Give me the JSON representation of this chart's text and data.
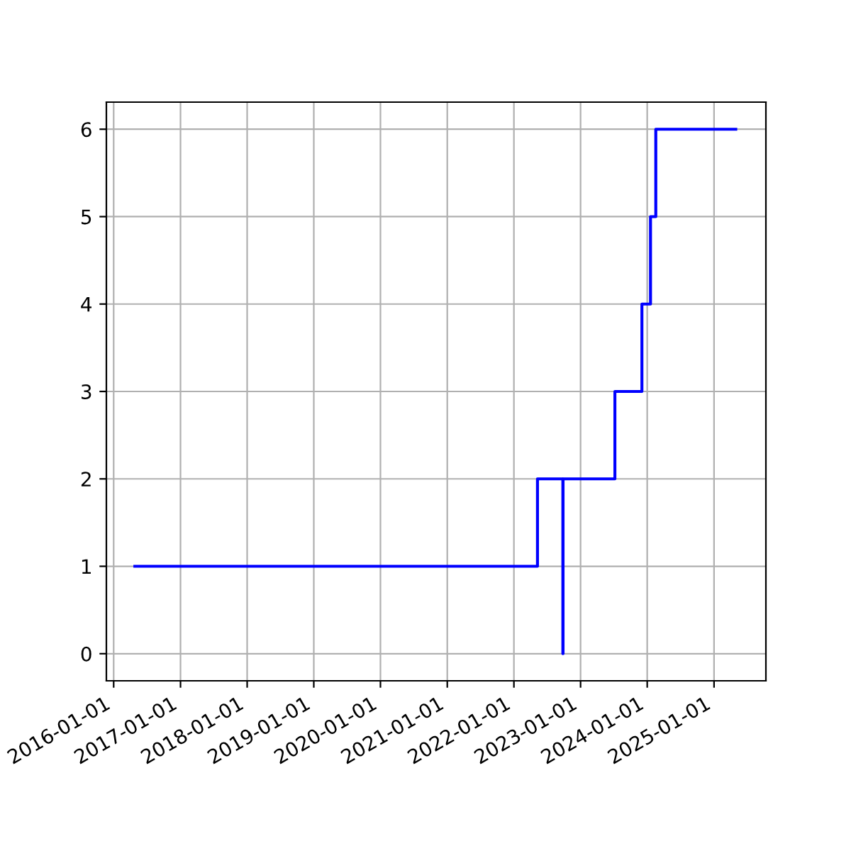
{
  "chart_data": {
    "type": "step",
    "x": [
      "2016-04-26",
      "2022-05-10",
      "2022-09-26",
      "2022-09-27",
      "2023-07-08",
      "2023-12-03",
      "2024-01-19",
      "2024-02-17",
      "2025-04-30"
    ],
    "series": [
      {
        "color": "#0000ff",
        "values": [
          1,
          2,
          0,
          2,
          3,
          4,
          5,
          6,
          6
        ]
      }
    ],
    "xlim": [
      "2015-11-22",
      "2025-10-12"
    ],
    "xticks": [
      {
        "value": "2016-01-01",
        "label": "2016-01-01"
      },
      {
        "value": "2017-01-01",
        "label": "2017-01-01"
      },
      {
        "value": "2018-01-01",
        "label": "2018-01-01"
      },
      {
        "value": "2019-01-01",
        "label": "2019-01-01"
      },
      {
        "value": "2020-01-01",
        "label": "2020-01-01"
      },
      {
        "value": "2021-01-01",
        "label": "2021-01-01"
      },
      {
        "value": "2022-01-01",
        "label": "2022-01-01"
      },
      {
        "value": "2023-01-01",
        "label": "2023-01-01"
      },
      {
        "value": "2024-01-01",
        "label": "2024-01-01"
      },
      {
        "value": "2025-01-01",
        "label": "2025-01-01"
      }
    ],
    "ylim": [
      -0.31,
      6.31
    ],
    "yticks": [
      0,
      1,
      2,
      3,
      4,
      5,
      6
    ],
    "grid": true
  }
}
